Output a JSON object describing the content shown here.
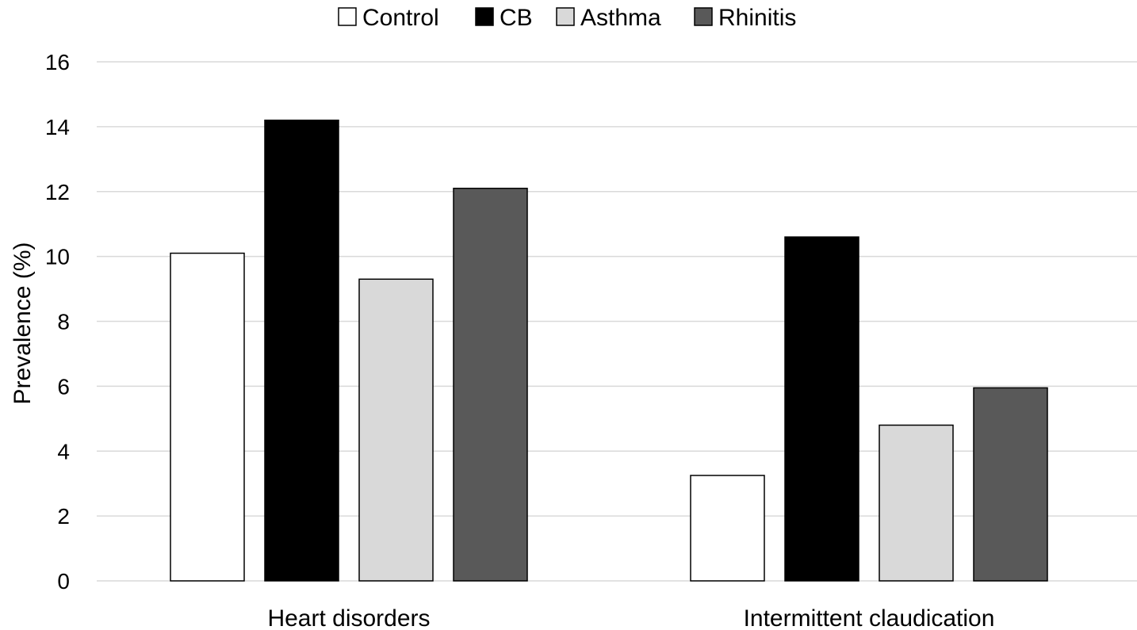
{
  "chart_data": {
    "type": "bar",
    "categories": [
      "Heart disorders",
      "Intermittent claudication"
    ],
    "series": [
      {
        "name": "Control",
        "values": [
          10.1,
          3.25
        ],
        "color": "#ffffff"
      },
      {
        "name": "CB",
        "values": [
          14.2,
          10.6
        ],
        "color": "#000000"
      },
      {
        "name": "Asthma",
        "values": [
          9.3,
          4.8
        ],
        "color": "#d9d9d9"
      },
      {
        "name": "Rhinitis",
        "values": [
          12.1,
          5.95
        ],
        "color": "#595959"
      }
    ],
    "ylabel": "Prevalence (%)",
    "xlabel": "",
    "ylim": [
      0,
      16
    ],
    "yticks": [
      0,
      2,
      4,
      6,
      8,
      10,
      12,
      14,
      16
    ],
    "grid": true,
    "legend_position": "top-center",
    "colors": {
      "gridline": "#d9d9d9",
      "bar_border": "#000000"
    }
  }
}
